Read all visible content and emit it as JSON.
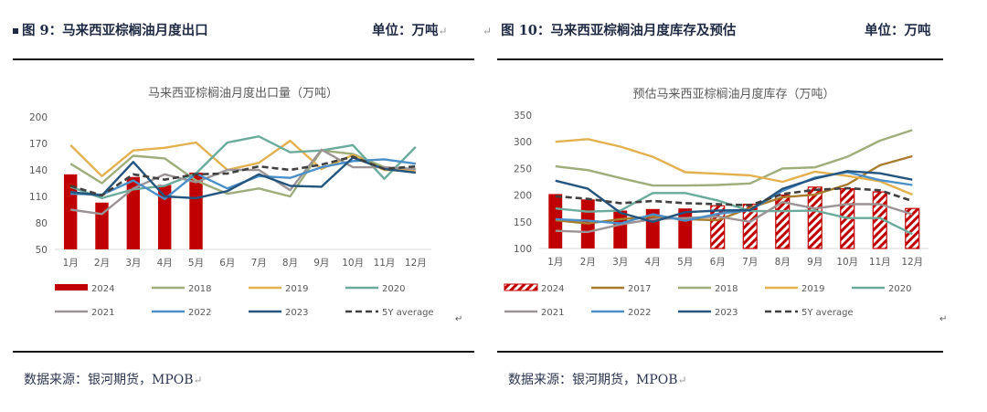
{
  "left": {
    "figure_label": "图 9：马来西亚棕榈油月度出口",
    "unit_label": "单位：万吨",
    "source": "数据来源：银河期货，MPOB",
    "para_mark": "↵"
  },
  "right": {
    "figure_label": "图 10：马来西亚棕榈油月度库存及预估",
    "unit_label": "单位：万吨",
    "source": "数据来源：银河期货，MPOB",
    "para_mark": "↵"
  },
  "chart_data": [
    {
      "type": "bar",
      "title": "马来西亚棕榈油月度出口量（万吨）",
      "xlabel": "",
      "ylabel": "",
      "ylim": [
        50,
        200
      ],
      "yticks": [
        50,
        80,
        110,
        140,
        170,
        200
      ],
      "grid": false,
      "legend_position": "bottom",
      "categories": [
        "1月",
        "2月",
        "3月",
        "4月",
        "5月",
        "6月",
        "7月",
        "8月",
        "9月",
        "10月",
        "11月",
        "12月"
      ],
      "bars": [
        {
          "name": "2024",
          "color": "#c00000",
          "pattern": "solid",
          "values": [
            135,
            103,
            132,
            123,
            137,
            null,
            null,
            null,
            null,
            null,
            null,
            null
          ]
        }
      ],
      "series": [
        {
          "name": "2018",
          "color": "#9ead7a",
          "dashed": false,
          "values": [
            147,
            125,
            156,
            153,
            128,
            113,
            119,
            110,
            162,
            158,
            143,
            137
          ]
        },
        {
          "name": "2019",
          "color": "#e3b04f",
          "dashed": false,
          "values": [
            168,
            133,
            162,
            165,
            171,
            140,
            148,
            173,
            141,
            157,
            140,
            139
          ]
        },
        {
          "name": "2020",
          "color": "#6aab9c",
          "dashed": false,
          "values": [
            121,
            108,
            118,
            122,
            136,
            171,
            178,
            160,
            162,
            168,
            130,
            166
          ]
        },
        {
          "name": "2021",
          "color": "#9c9494",
          "dashed": false,
          "values": [
            95,
            90,
            119,
            135,
            126,
            140,
            140,
            117,
            163,
            143,
            143,
            141
          ]
        },
        {
          "name": "2022",
          "color": "#4a8fc8",
          "dashed": false,
          "values": [
            113,
            112,
            128,
            107,
            136,
            119,
            133,
            131,
            143,
            150,
            152,
            147
          ]
        },
        {
          "name": "2023",
          "color": "#24557f",
          "dashed": false,
          "values": [
            115,
            111,
            149,
            110,
            108,
            116,
            135,
            122,
            121,
            154,
            141,
            137
          ]
        },
        {
          "name": "5Y average",
          "color": "#404040",
          "dashed": true,
          "values": [
            122,
            111,
            135,
            129,
            135,
            136,
            144,
            140,
            146,
            155,
            141,
            144
          ]
        }
      ],
      "legend": [
        "2024",
        "2018",
        "2019",
        "2020",
        "2021",
        "2022",
        "2023",
        "5Y average"
      ]
    },
    {
      "type": "bar",
      "title": "预估马来西亚棕榈油月度库存（万吨）",
      "xlabel": "",
      "ylabel": "",
      "ylim": [
        100,
        350
      ],
      "yticks": [
        100,
        150,
        200,
        250,
        300,
        350
      ],
      "grid": false,
      "legend_position": "bottom",
      "categories": [
        "1月",
        "2月",
        "3月",
        "4月",
        "5月",
        "6月",
        "7月",
        "8月",
        "9月",
        "10月",
        "11月",
        "12月"
      ],
      "bars": [
        {
          "name": "2024",
          "color": "#c00000",
          "pattern": "actual-solid-then-hatched-estimate",
          "values": [
            202,
            192,
            171,
            174,
            175,
            180,
            183,
            200,
            215,
            212,
            206,
            175
          ],
          "estimated": [
            false,
            false,
            false,
            false,
            false,
            true,
            true,
            true,
            true,
            true,
            true,
            true
          ]
        }
      ],
      "series": [
        {
          "name": "2017",
          "color": "#a97b2c",
          "dashed": false,
          "values": [
            153,
            147,
            155,
            160,
            155,
            153,
            176,
            196,
            201,
            220,
            256,
            273
          ]
        },
        {
          "name": "2018",
          "color": "#9ead7a",
          "dashed": false,
          "values": [
            254,
            247,
            232,
            218,
            218,
            219,
            222,
            250,
            252,
            272,
            302,
            322
          ]
        },
        {
          "name": "2019",
          "color": "#e3b04f",
          "dashed": false,
          "values": [
            300,
            305,
            291,
            272,
            243,
            240,
            237,
            225,
            244,
            236,
            226,
            201
          ]
        },
        {
          "name": "2020",
          "color": "#6aab9c",
          "dashed": false,
          "values": [
            175,
            169,
            171,
            204,
            204,
            190,
            170,
            170,
            171,
            157,
            157,
            127
          ]
        },
        {
          "name": "2021",
          "color": "#9c9494",
          "dashed": false,
          "values": [
            133,
            131,
            145,
            155,
            157,
            160,
            150,
            187,
            175,
            183,
            183,
            164
          ]
        },
        {
          "name": "2022",
          "color": "#4a8fc8",
          "dashed": false,
          "values": [
            155,
            152,
            147,
            164,
            152,
            165,
            172,
            208,
            233,
            243,
            228,
            219
          ]
        },
        {
          "name": "2023",
          "color": "#24557f",
          "dashed": false,
          "values": [
            227,
            212,
            167,
            150,
            168,
            171,
            172,
            212,
            231,
            245,
            241,
            229
          ]
        },
        {
          "name": "5Y average",
          "color": "#404040",
          "dashed": true,
          "values": [
            198,
            193,
            185,
            189,
            185,
            183,
            181,
            202,
            210,
            213,
            209,
            189
          ]
        }
      ],
      "legend": [
        "2024",
        "2017",
        "2018",
        "2019",
        "2020",
        "2021",
        "2022",
        "2023",
        "5Y average"
      ]
    }
  ]
}
